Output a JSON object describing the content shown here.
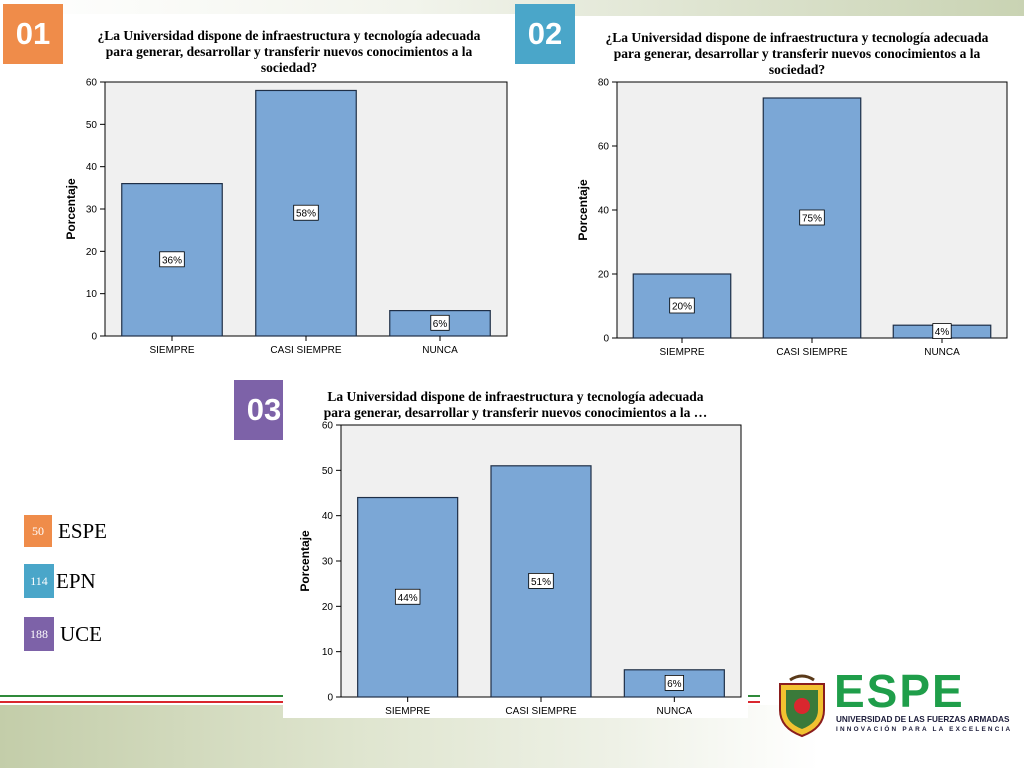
{
  "charts": [
    {
      "badge": "01",
      "badge_color": "#ef8c4a",
      "title": "¿La Universidad dispone de infraestructura y tecnología adecuada\npara generar, desarrollar y transferir nuevos conocimientos a la\nsociedad?",
      "ylabel": "Porcentaje"
    },
    {
      "badge": "02",
      "badge_color": "#4aa6c9",
      "title": "¿La Universidad dispone de infraestructura y tecnología adecuada\npara generar, desarrollar y transferir nuevos conocimientos a la\nsociedad?",
      "ylabel": "Porcentaje"
    },
    {
      "badge": "03",
      "badge_color": "#7d62a8",
      "title": "La Universidad dispone de infraestructura y tecnología adecuada\npara generar, desarrollar y transferir nuevos conocimientos a la …",
      "ylabel": "Porcentaje"
    }
  ],
  "chart_data": [
    {
      "type": "bar",
      "categories": [
        "SIEMPRE",
        "CASI SIEMPRE",
        "NUNCA"
      ],
      "values": [
        36,
        58,
        6
      ],
      "data_labels": [
        "36%",
        "58%",
        "6%"
      ],
      "ylabel": "Porcentaje",
      "ylim": [
        0,
        60
      ],
      "yticks": [
        0,
        10,
        20,
        30,
        40,
        50,
        60
      ]
    },
    {
      "type": "bar",
      "categories": [
        "SIEMPRE",
        "CASI SIEMPRE",
        "NUNCA"
      ],
      "values": [
        20,
        75,
        4
      ],
      "data_labels": [
        "20%",
        "75%",
        "4%"
      ],
      "ylabel": "Porcentaje",
      "ylim": [
        0,
        80
      ],
      "yticks": [
        0,
        20,
        40,
        60,
        80
      ]
    },
    {
      "type": "bar",
      "categories": [
        "SIEMPRE",
        "CASI SIEMPRE",
        "NUNCA"
      ],
      "values": [
        44,
        51,
        6
      ],
      "data_labels": [
        "44%",
        "51%",
        "6%"
      ],
      "ylabel": "Porcentaje",
      "ylim": [
        0,
        60
      ],
      "yticks": [
        0,
        10,
        20,
        30,
        40,
        50,
        60
      ]
    }
  ],
  "legend": [
    {
      "count": "50",
      "label": "ESPE",
      "color": "#ef8c4a"
    },
    {
      "count": "114",
      "label": "EPN",
      "color": "#4aa6c9"
    },
    {
      "count": "188",
      "label": "UCE",
      "color": "#7d62a8"
    }
  ],
  "logo": {
    "wordmark": "ESPE",
    "subtitle": "UNIVERSIDAD DE LAS FUERZAS ARMADAS",
    "tagline": "INNOVACIÓN PARA LA EXCELENCIA"
  },
  "colors": {
    "bar_fill": "#7ba7d6",
    "bar_stroke": "#1f2f47",
    "plot_bg": "#f0f0f0",
    "logo_green": "#1f9e4a"
  }
}
